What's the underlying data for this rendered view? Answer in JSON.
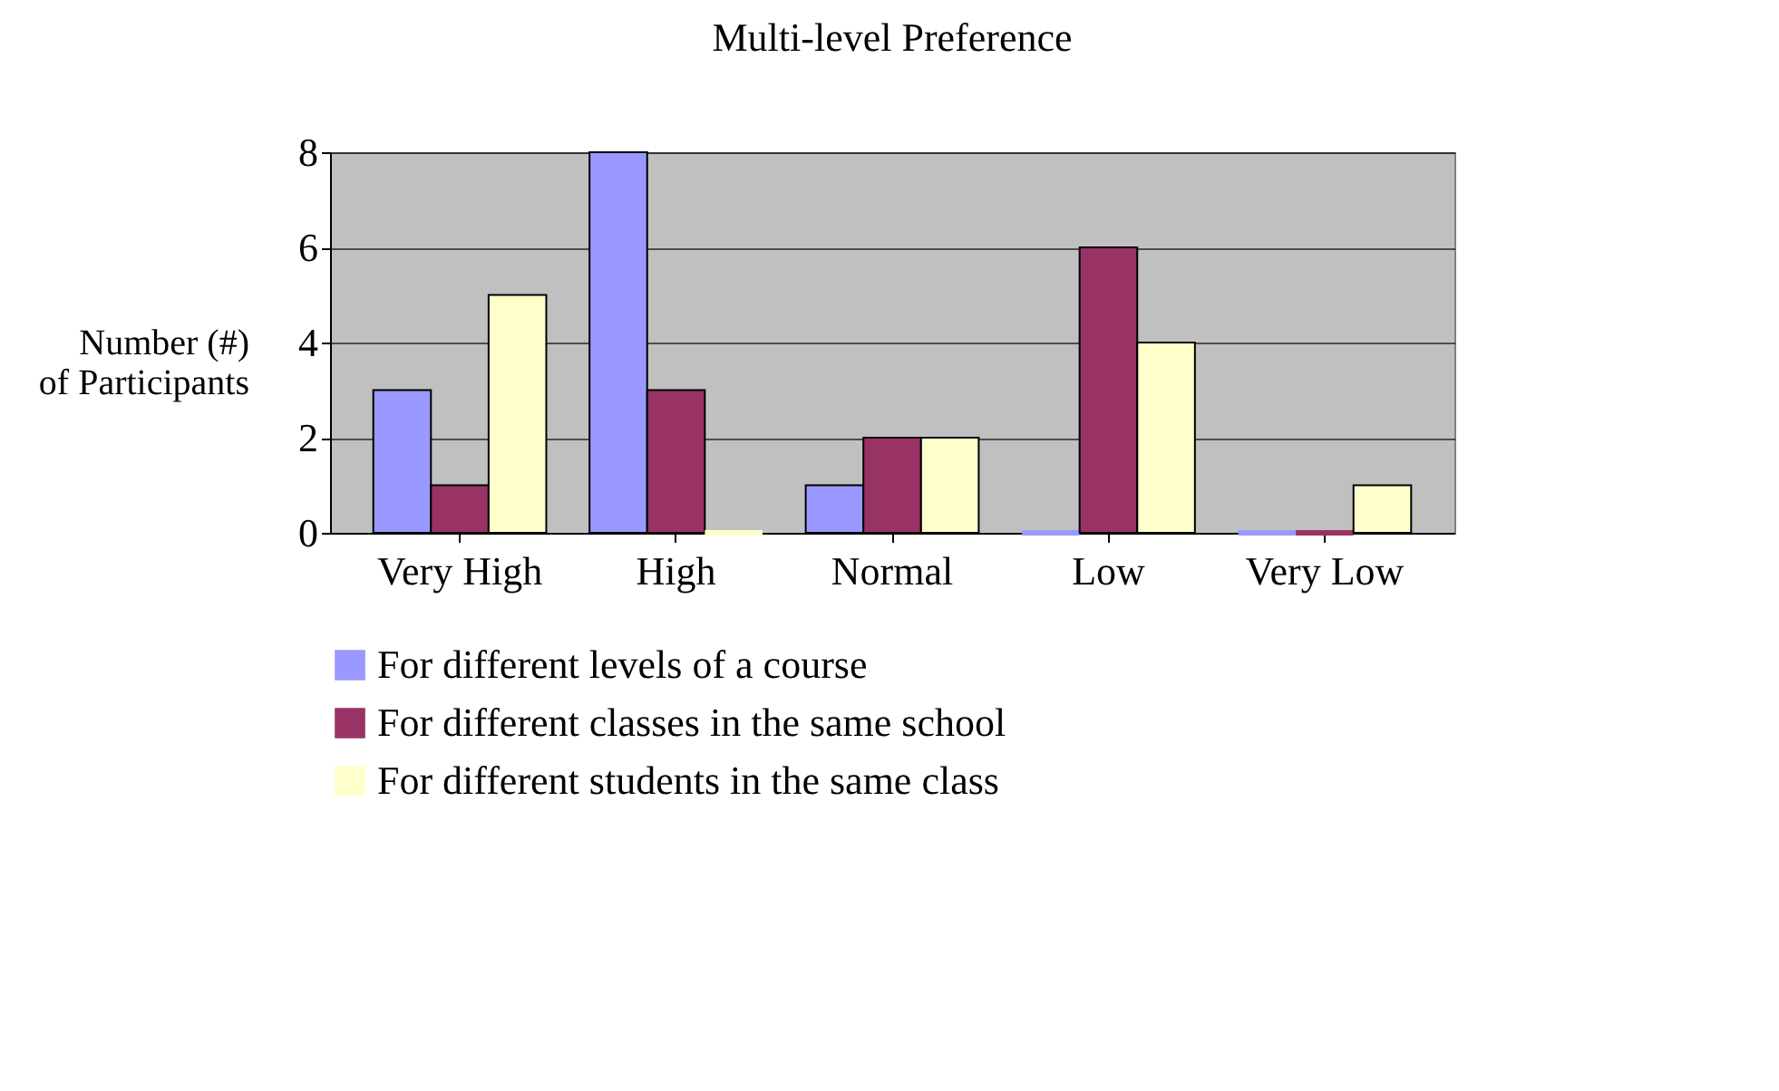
{
  "chart_data": {
    "type": "bar",
    "title": "Multi-level Preference",
    "ylabel": "Number (#) of Participants",
    "categories": [
      "Very High",
      "High",
      "Normal",
      "Low",
      "Very Low"
    ],
    "series": [
      {
        "name": "For different levels of a course",
        "color": "#9999ff",
        "values": [
          3,
          8,
          1,
          0,
          0
        ]
      },
      {
        "name": "For different classes in the same school",
        "color": "#993366",
        "values": [
          1,
          3,
          2,
          6,
          0
        ]
      },
      {
        "name": "For different students in the same class",
        "color": "#ffffcc",
        "values": [
          5,
          0,
          2,
          4,
          1
        ]
      }
    ],
    "ylim": [
      0,
      8
    ],
    "yticks": [
      0,
      2,
      4,
      6,
      8
    ],
    "grid": "y",
    "legend": "bottom"
  }
}
